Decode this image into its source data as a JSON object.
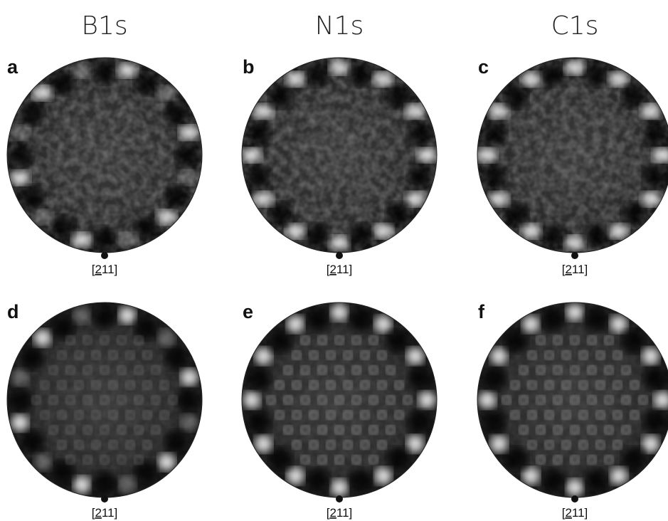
{
  "columns": [
    "B1s",
    "N1s",
    "C1s"
  ],
  "panels": [
    {
      "label": "a",
      "direction": {
        "prefix": "[",
        "underlined": "2",
        "suffix": "11]"
      }
    },
    {
      "label": "b",
      "direction": {
        "prefix": "[",
        "underlined": "2",
        "suffix": "11]"
      }
    },
    {
      "label": "c",
      "direction": {
        "prefix": "[",
        "underlined": "2",
        "suffix": "11]"
      }
    },
    {
      "label": "d",
      "direction": {
        "prefix": "[",
        "underlined": "2",
        "suffix": "11]"
      }
    },
    {
      "label": "e",
      "direction": {
        "prefix": "[",
        "underlined": "2",
        "suffix": "11]"
      }
    },
    {
      "label": "f",
      "direction": {
        "prefix": "[",
        "underlined": "2",
        "suffix": "11]"
      }
    }
  ]
}
